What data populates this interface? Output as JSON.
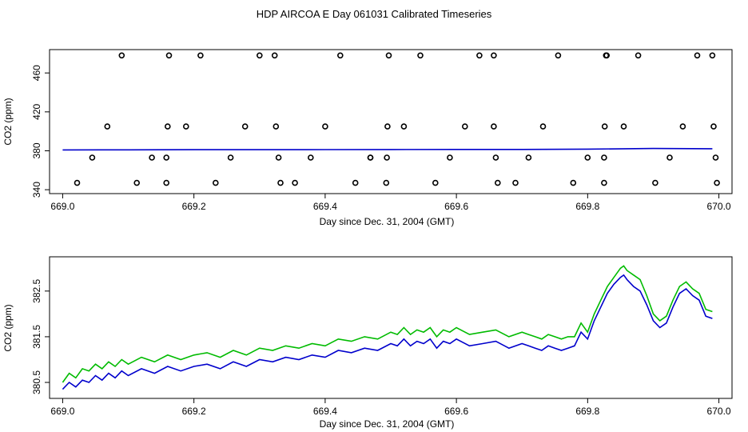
{
  "title": "HDP AIRCOA E  Day 061031  Calibrated Timeseries",
  "colors": {
    "series_a": "#00bb00",
    "series_b": "#0000cc",
    "points": "#000000"
  },
  "chart_data": [
    {
      "type": "scatter",
      "xlabel": "Day since Dec. 31, 2004 (GMT)",
      "ylabel": "CO2 (ppm)",
      "xlim": [
        668.98,
        670.02
      ],
      "ylim": [
        336,
        484
      ],
      "xticks": [
        669.0,
        669.2,
        669.4,
        669.6,
        669.8,
        670.0
      ],
      "xtick_labels": [
        "669.0",
        "669.2",
        "669.4",
        "669.6",
        "669.8",
        "670.0"
      ],
      "yticks": [
        340,
        380,
        420,
        460
      ],
      "ytick_labels": [
        "340",
        "380",
        "420",
        "460"
      ],
      "grid": false,
      "points": {
        "x": [
          669.022,
          669.045,
          669.068,
          669.09,
          669.113,
          669.136,
          669.158,
          669.158,
          669.16,
          669.162,
          669.188,
          669.21,
          669.233,
          669.256,
          669.278,
          669.3,
          669.323,
          669.325,
          669.329,
          669.332,
          669.354,
          669.378,
          669.4,
          669.423,
          669.446,
          669.469,
          669.469,
          669.493,
          669.494,
          669.495,
          669.497,
          669.52,
          669.545,
          669.568,
          669.59,
          669.613,
          669.635,
          669.657,
          669.657,
          669.66,
          669.663,
          669.69,
          669.71,
          669.732,
          669.755,
          669.778,
          669.8,
          669.825,
          669.825,
          669.826,
          669.828,
          669.829,
          669.855,
          669.877,
          669.903,
          669.925,
          669.945,
          669.967,
          669.99,
          669.992,
          669.995,
          669.997
        ],
        "y": [
          347,
          373,
          405,
          478,
          347,
          373,
          347,
          373,
          405,
          478,
          405,
          478,
          347,
          373,
          405,
          478,
          478,
          405,
          373,
          347,
          347,
          373,
          405,
          478,
          347,
          373,
          373,
          347,
          373,
          405,
          478,
          405,
          478,
          347,
          373,
          405,
          478,
          478,
          405,
          373,
          347,
          347,
          373,
          405,
          478,
          347,
          373,
          347,
          373,
          405,
          478,
          478,
          405,
          478,
          347,
          373,
          405,
          478,
          478,
          405,
          373,
          347
        ]
      },
      "series": [
        {
          "x": [
            669.0,
            669.1,
            669.2,
            669.3,
            669.4,
            669.5,
            669.6,
            669.7,
            669.8,
            669.9,
            669.99
          ],
          "values": [
            380.9,
            381.0,
            381.1,
            381.1,
            381.2,
            381.3,
            381.4,
            381.4,
            381.7,
            382.4,
            382.1
          ]
        }
      ]
    },
    {
      "type": "line",
      "xlabel": "Day since Dec. 31, 2004 (GMT)",
      "ylabel": "CO2 (ppm)",
      "xlim": [
        668.98,
        670.02
      ],
      "ylim": [
        380.15,
        383.25
      ],
      "xticks": [
        669.0,
        669.2,
        669.4,
        669.6,
        669.8,
        670.0
      ],
      "xtick_labels": [
        "669.0",
        "669.2",
        "669.4",
        "669.6",
        "669.8",
        "670.0"
      ],
      "yticks": [
        380.5,
        381.5,
        382.5
      ],
      "ytick_labels": [
        "380.5",
        "381.5",
        "382.5"
      ],
      "grid": false,
      "series": [
        {
          "color": "#00bb00",
          "x": [
            669.0,
            669.01,
            669.02,
            669.03,
            669.04,
            669.05,
            669.06,
            669.07,
            669.08,
            669.09,
            669.1,
            669.12,
            669.14,
            669.16,
            669.18,
            669.2,
            669.22,
            669.24,
            669.26,
            669.28,
            669.3,
            669.32,
            669.34,
            669.36,
            669.38,
            669.4,
            669.42,
            669.44,
            669.46,
            669.48,
            669.5,
            669.51,
            669.52,
            669.53,
            669.54,
            669.55,
            669.56,
            669.57,
            669.58,
            669.59,
            669.6,
            669.62,
            669.64,
            669.66,
            669.68,
            669.7,
            669.71,
            669.72,
            669.73,
            669.74,
            669.75,
            669.76,
            669.77,
            669.78,
            669.79,
            669.8,
            669.81,
            669.82,
            669.83,
            669.84,
            669.85,
            669.855,
            669.86,
            669.87,
            669.88,
            669.89,
            669.9,
            669.91,
            669.92,
            669.93,
            669.94,
            669.95,
            669.96,
            669.97,
            669.98,
            669.99
          ],
          "values": [
            380.5,
            380.7,
            380.6,
            380.8,
            380.75,
            380.9,
            380.8,
            380.95,
            380.85,
            381.0,
            380.9,
            381.05,
            380.95,
            381.1,
            381.0,
            381.1,
            381.15,
            381.05,
            381.2,
            381.1,
            381.25,
            381.2,
            381.3,
            381.25,
            381.35,
            381.3,
            381.45,
            381.4,
            381.5,
            381.45,
            381.6,
            381.55,
            381.7,
            381.55,
            381.65,
            381.6,
            381.7,
            381.5,
            381.65,
            381.6,
            381.7,
            381.55,
            381.6,
            381.65,
            381.5,
            381.6,
            381.55,
            381.5,
            381.45,
            381.55,
            381.5,
            381.45,
            381.5,
            381.5,
            381.8,
            381.6,
            382.0,
            382.3,
            382.6,
            382.8,
            383.0,
            383.05,
            382.95,
            382.85,
            382.75,
            382.4,
            382.0,
            381.85,
            381.95,
            382.3,
            382.6,
            382.7,
            382.55,
            382.45,
            382.1,
            382.05
          ]
        },
        {
          "color": "#0000cc",
          "x": [
            669.0,
            669.01,
            669.02,
            669.03,
            669.04,
            669.05,
            669.06,
            669.07,
            669.08,
            669.09,
            669.1,
            669.12,
            669.14,
            669.16,
            669.18,
            669.2,
            669.22,
            669.24,
            669.26,
            669.28,
            669.3,
            669.32,
            669.34,
            669.36,
            669.38,
            669.4,
            669.42,
            669.44,
            669.46,
            669.48,
            669.5,
            669.51,
            669.52,
            669.53,
            669.54,
            669.55,
            669.56,
            669.57,
            669.58,
            669.59,
            669.6,
            669.62,
            669.64,
            669.66,
            669.68,
            669.7,
            669.71,
            669.72,
            669.73,
            669.74,
            669.75,
            669.76,
            669.77,
            669.78,
            669.79,
            669.8,
            669.81,
            669.82,
            669.83,
            669.84,
            669.85,
            669.855,
            669.86,
            669.87,
            669.88,
            669.89,
            669.9,
            669.91,
            669.92,
            669.93,
            669.94,
            669.95,
            669.96,
            669.97,
            669.98,
            669.99
          ],
          "values": [
            380.35,
            380.5,
            380.4,
            380.55,
            380.5,
            380.65,
            380.55,
            380.7,
            380.6,
            380.75,
            380.65,
            380.8,
            380.7,
            380.85,
            380.75,
            380.85,
            380.9,
            380.8,
            380.95,
            380.85,
            381.0,
            380.95,
            381.05,
            381.0,
            381.1,
            381.05,
            381.2,
            381.15,
            381.25,
            381.2,
            381.35,
            381.3,
            381.45,
            381.3,
            381.4,
            381.35,
            381.45,
            381.25,
            381.4,
            381.35,
            381.45,
            381.3,
            381.35,
            381.4,
            381.25,
            381.35,
            381.3,
            381.25,
            381.2,
            381.3,
            381.25,
            381.2,
            381.25,
            381.3,
            381.6,
            381.45,
            381.85,
            382.15,
            382.45,
            382.65,
            382.8,
            382.85,
            382.75,
            382.6,
            382.5,
            382.2,
            381.85,
            381.7,
            381.8,
            382.15,
            382.45,
            382.55,
            382.4,
            382.3,
            381.95,
            381.9
          ]
        }
      ]
    }
  ]
}
